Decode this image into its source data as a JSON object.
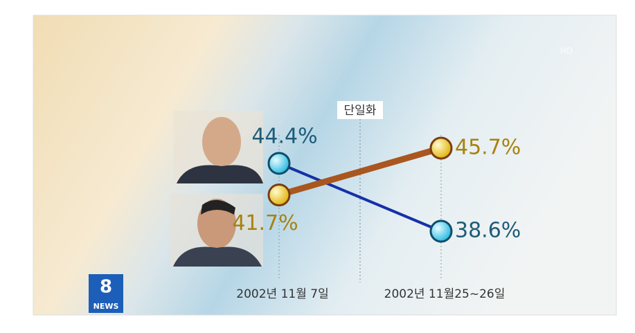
{
  "chart_data": {
    "type": "line",
    "categories": [
      "2002년 11월 7일",
      "2002년 11월25~26일"
    ],
    "series": [
      {
        "color": "#1530a8",
        "marker_color": "#3fd3f2",
        "label_color": "#1d5c78",
        "values": [
          44.4,
          38.6
        ],
        "value_labels": [
          "44.4%",
          "38.6%"
        ]
      },
      {
        "color": "#a9561f",
        "marker_color": "#f4d21a",
        "label_color": "#a8820f",
        "values": [
          41.7,
          45.7
        ],
        "value_labels": [
          "41.7%",
          "45.7%"
        ]
      }
    ],
    "annotations": [
      "단일화"
    ],
    "logo": {
      "number": "8",
      "text": "NEWS"
    },
    "watermark": "HD"
  }
}
